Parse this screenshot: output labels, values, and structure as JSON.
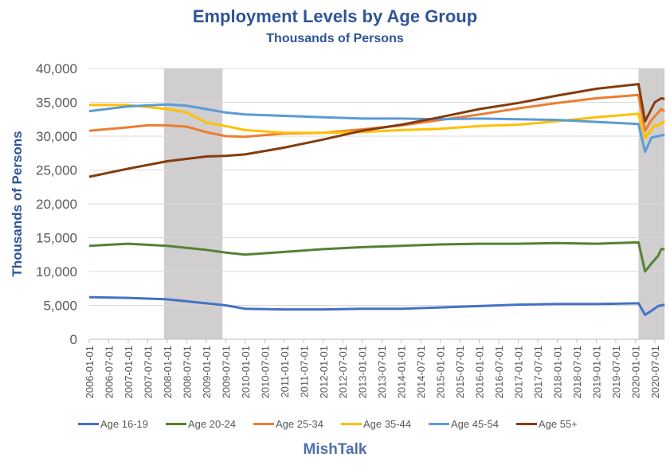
{
  "chart_data": {
    "type": "line",
    "title": "Employment Levels by Age Group",
    "subtitle": "Thousands of Persons",
    "xlabel": "",
    "ylabel": "Thousands of Persons",
    "ylim": [
      0,
      40000
    ],
    "yticks": [
      "0",
      "5,000",
      "10,000",
      "15,000",
      "20,000",
      "25,000",
      "30,000",
      "35,000",
      "40,000"
    ],
    "xlim": [
      "2006-01",
      "2020-10"
    ],
    "xticks": [
      "2006-01-01",
      "2006-07-01",
      "2007-01-01",
      "2007-07-01",
      "2008-01-01",
      "2008-07-01",
      "2009-01-01",
      "2009-07-01",
      "2010-01-01",
      "2010-07-01",
      "2011-01-01",
      "2011-07-01",
      "2012-01-01",
      "2012-07-01",
      "2013-01-01",
      "2013-07-01",
      "2014-01-01",
      "2014-07-01",
      "2015-01-01",
      "2015-07-01",
      "2016-01-01",
      "2016-07-01",
      "2017-01-01",
      "2017-07-01",
      "2018-01-01",
      "2018-07-01",
      "2019-01-01",
      "2019-07-01",
      "2020-01-01",
      "2020-07-01"
    ],
    "grid": true,
    "legend": "bottom",
    "recessions": [
      [
        "2007-12",
        "2009-06"
      ],
      [
        "2020-02",
        "2020-10"
      ]
    ],
    "recession_color": "#D0CECE",
    "series": [
      {
        "name": "Age 16-19",
        "color": "#4472C4",
        "points": [
          [
            "2006-01",
            6200
          ],
          [
            "2007-01",
            6100
          ],
          [
            "2008-01",
            5900
          ],
          [
            "2009-01",
            5300
          ],
          [
            "2009-07",
            5000
          ],
          [
            "2010-01",
            4500
          ],
          [
            "2011-01",
            4400
          ],
          [
            "2012-01",
            4400
          ],
          [
            "2013-01",
            4500
          ],
          [
            "2014-01",
            4500
          ],
          [
            "2015-01",
            4700
          ],
          [
            "2016-01",
            4900
          ],
          [
            "2017-01",
            5100
          ],
          [
            "2018-01",
            5200
          ],
          [
            "2019-01",
            5200
          ],
          [
            "2020-02",
            5300
          ],
          [
            "2020-04",
            3600
          ],
          [
            "2020-06",
            4200
          ],
          [
            "2020-08",
            4900
          ],
          [
            "2020-10",
            5100
          ]
        ]
      },
      {
        "name": "Age 20-24",
        "color": "#548235",
        "points": [
          [
            "2006-01",
            13800
          ],
          [
            "2007-01",
            14100
          ],
          [
            "2008-01",
            13800
          ],
          [
            "2009-01",
            13200
          ],
          [
            "2009-07",
            12800
          ],
          [
            "2010-01",
            12500
          ],
          [
            "2011-01",
            12900
          ],
          [
            "2012-01",
            13300
          ],
          [
            "2013-01",
            13600
          ],
          [
            "2014-01",
            13800
          ],
          [
            "2015-01",
            14000
          ],
          [
            "2016-01",
            14100
          ],
          [
            "2017-01",
            14100
          ],
          [
            "2018-01",
            14200
          ],
          [
            "2019-01",
            14100
          ],
          [
            "2020-02",
            14300
          ],
          [
            "2020-04",
            10000
          ],
          [
            "2020-06",
            11200
          ],
          [
            "2020-08",
            12300
          ],
          [
            "2020-09",
            13300
          ],
          [
            "2020-10",
            13300
          ]
        ]
      },
      {
        "name": "Age 25-34",
        "color": "#ED7D31",
        "points": [
          [
            "2006-01",
            30800
          ],
          [
            "2007-01",
            31300
          ],
          [
            "2007-07",
            31600
          ],
          [
            "2008-01",
            31600
          ],
          [
            "2008-07",
            31400
          ],
          [
            "2009-01",
            30600
          ],
          [
            "2009-07",
            30000
          ],
          [
            "2010-01",
            29900
          ],
          [
            "2011-01",
            30400
          ],
          [
            "2012-01",
            30500
          ],
          [
            "2013-01",
            31000
          ],
          [
            "2014-01",
            31600
          ],
          [
            "2015-01",
            32400
          ],
          [
            "2016-01",
            33200
          ],
          [
            "2017-01",
            34100
          ],
          [
            "2018-01",
            34900
          ],
          [
            "2019-01",
            35600
          ],
          [
            "2020-02",
            36100
          ],
          [
            "2020-04",
            30800
          ],
          [
            "2020-06",
            32400
          ],
          [
            "2020-09",
            34000
          ],
          [
            "2020-10",
            33700
          ]
        ]
      },
      {
        "name": "Age 35-44",
        "color": "#FFC000",
        "points": [
          [
            "2006-01",
            34600
          ],
          [
            "2007-01",
            34600
          ],
          [
            "2008-01",
            34000
          ],
          [
            "2008-07",
            33500
          ],
          [
            "2009-01",
            32000
          ],
          [
            "2009-07",
            31500
          ],
          [
            "2010-01",
            30900
          ],
          [
            "2011-01",
            30500
          ],
          [
            "2012-01",
            30500
          ],
          [
            "2013-01",
            30600
          ],
          [
            "2014-01",
            30900
          ],
          [
            "2015-01",
            31100
          ],
          [
            "2016-01",
            31500
          ],
          [
            "2017-01",
            31700
          ],
          [
            "2018-01",
            32200
          ],
          [
            "2019-01",
            32800
          ],
          [
            "2020-02",
            33300
          ],
          [
            "2020-04",
            29700
          ],
          [
            "2020-07",
            31700
          ],
          [
            "2020-08",
            31500
          ],
          [
            "2020-10",
            32300
          ]
        ]
      },
      {
        "name": "Age 45-54",
        "color": "#5B9BD5",
        "points": [
          [
            "2006-01",
            33700
          ],
          [
            "2007-01",
            34400
          ],
          [
            "2008-01",
            34700
          ],
          [
            "2008-07",
            34500
          ],
          [
            "2009-01",
            34000
          ],
          [
            "2009-07",
            33500
          ],
          [
            "2010-01",
            33200
          ],
          [
            "2011-01",
            33000
          ],
          [
            "2012-01",
            32800
          ],
          [
            "2013-01",
            32600
          ],
          [
            "2014-01",
            32600
          ],
          [
            "2015-01",
            32500
          ],
          [
            "2016-01",
            32600
          ],
          [
            "2017-01",
            32500
          ],
          [
            "2018-01",
            32400
          ],
          [
            "2019-01",
            32100
          ],
          [
            "2020-02",
            31800
          ],
          [
            "2020-04",
            27700
          ],
          [
            "2020-06",
            29800
          ],
          [
            "2020-08",
            30000
          ],
          [
            "2020-10",
            30200
          ]
        ]
      },
      {
        "name": "Age 55+",
        "color": "#843C0C",
        "points": [
          [
            "2006-01",
            24000
          ],
          [
            "2007-01",
            25200
          ],
          [
            "2008-01",
            26300
          ],
          [
            "2009-01",
            27000
          ],
          [
            "2009-07",
            27100
          ],
          [
            "2010-01",
            27300
          ],
          [
            "2011-01",
            28300
          ],
          [
            "2012-01",
            29500
          ],
          [
            "2013-01",
            30800
          ],
          [
            "2014-01",
            31700
          ],
          [
            "2015-01",
            32800
          ],
          [
            "2016-01",
            34000
          ],
          [
            "2017-01",
            34900
          ],
          [
            "2018-01",
            36000
          ],
          [
            "2019-01",
            37000
          ],
          [
            "2020-02",
            37700
          ],
          [
            "2020-04",
            32200
          ],
          [
            "2020-07",
            35000
          ],
          [
            "2020-09",
            35600
          ],
          [
            "2020-10",
            35500
          ]
        ]
      }
    ]
  },
  "brand": "MishTalk"
}
